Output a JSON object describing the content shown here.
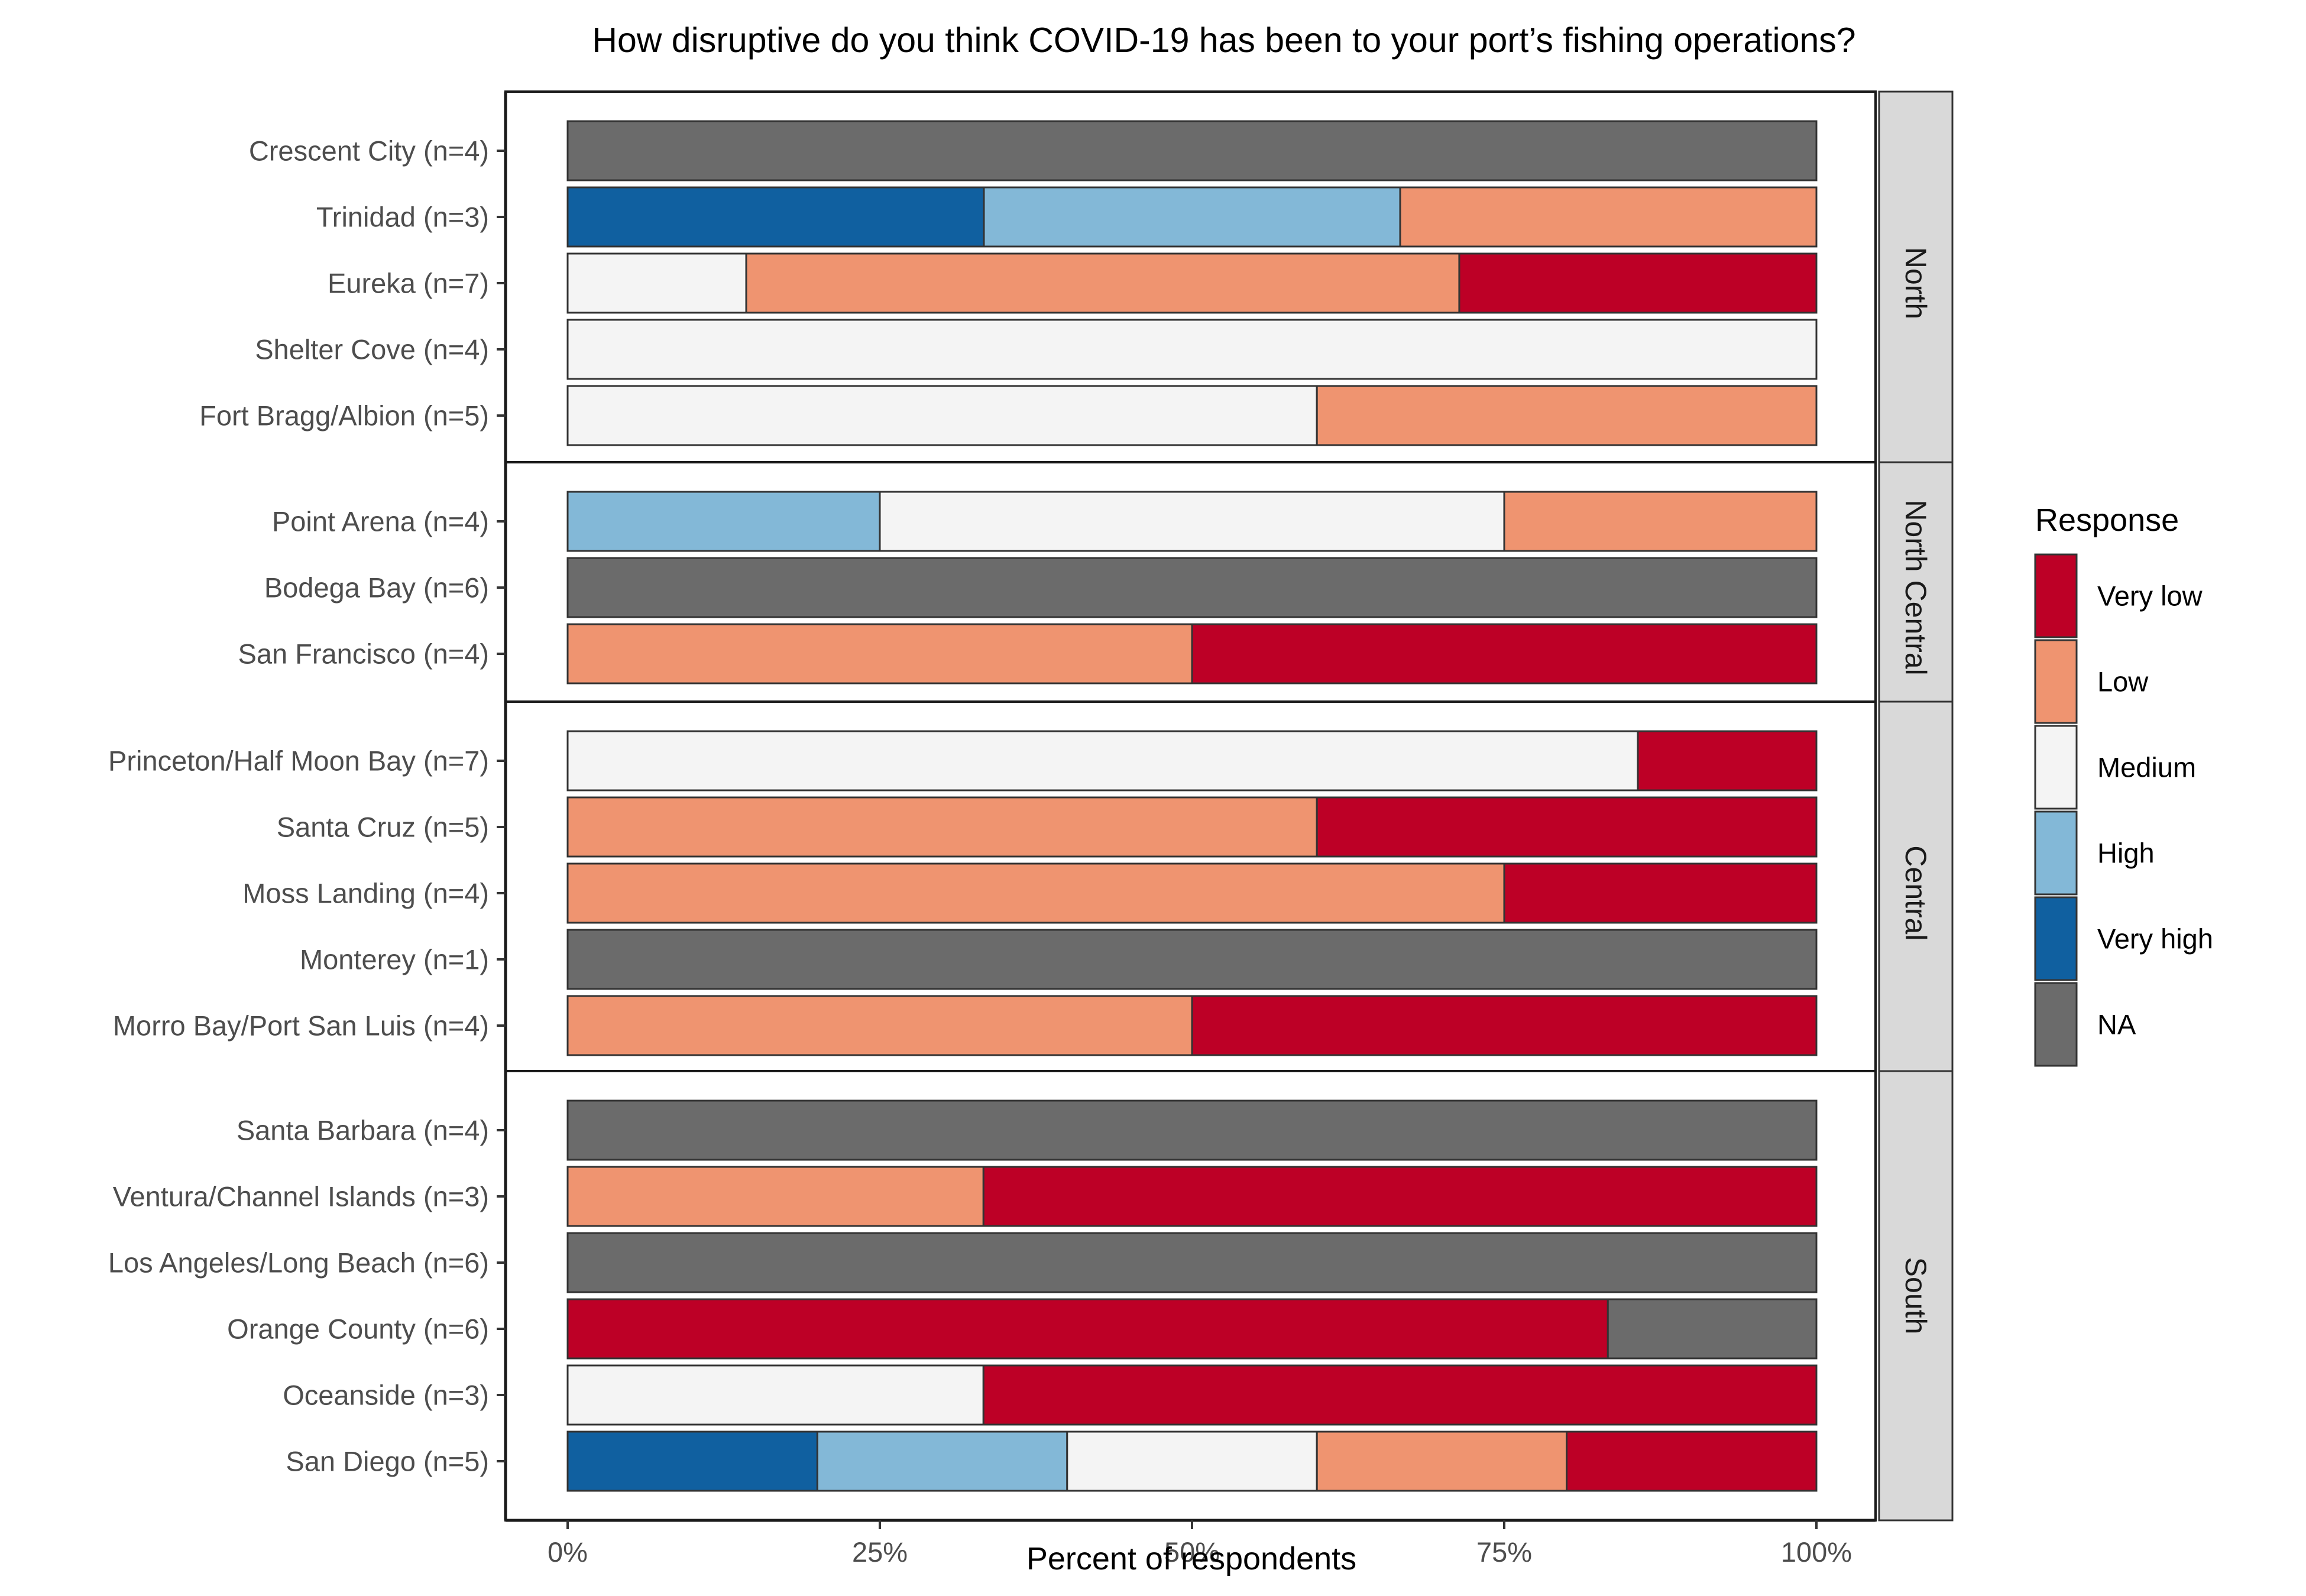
{
  "chart_data": {
    "type": "bar",
    "orientation": "horizontal",
    "stacked": true,
    "title": "How disruptive do you think COVID-19 has been to your port’s fishing operations?",
    "xlabel": "Percent of respondents",
    "ylabel": "",
    "xlim": [
      0,
      100
    ],
    "x_ticks": [
      0,
      25,
      50,
      75,
      100
    ],
    "x_tick_labels": [
      "0%",
      "25%",
      "50%",
      "75%",
      "100%"
    ],
    "grid": false,
    "legend": {
      "title": "Response",
      "position": "right",
      "entries": [
        "Very low",
        "Low",
        "Medium",
        "High",
        "Very high",
        "NA"
      ]
    },
    "colors": {
      "Very low": "#bd0026",
      "Low": "#ef9470",
      "Medium": "#f4f4f4",
      "High": "#83b8d7",
      "Very high": "#1060a0",
      "NA": "#6b6b6b"
    },
    "stack_order": [
      "Very high",
      "High",
      "Medium",
      "Low",
      "Very low",
      "NA"
    ],
    "facets": [
      {
        "name": "North",
        "ports": [
          {
            "label": "Crescent City (n=4)",
            "values": {
              "NA": 100
            }
          },
          {
            "label": "Trinidad (n=3)",
            "values": {
              "Very high": 33.3,
              "High": 33.3,
              "Low": 33.3
            }
          },
          {
            "label": "Eureka (n=7)",
            "values": {
              "Medium": 14.3,
              "Low": 57.1,
              "Very low": 28.6
            }
          },
          {
            "label": "Shelter Cove (n=4)",
            "values": {
              "Medium": 100
            }
          },
          {
            "label": "Fort Bragg/Albion (n=5)",
            "values": {
              "Medium": 60,
              "Low": 40
            }
          }
        ]
      },
      {
        "name": "North Central",
        "ports": [
          {
            "label": "Point Arena (n=4)",
            "values": {
              "High": 25,
              "Medium": 50,
              "Low": 25
            }
          },
          {
            "label": "Bodega Bay (n=6)",
            "values": {
              "NA": 100
            }
          },
          {
            "label": "San Francisco (n=4)",
            "values": {
              "Low": 50,
              "Very low": 50
            }
          }
        ]
      },
      {
        "name": "Central",
        "ports": [
          {
            "label": "Princeton/Half Moon Bay (n=7)",
            "values": {
              "Medium": 85.7,
              "Very low": 14.3
            }
          },
          {
            "label": "Santa Cruz (n=5)",
            "values": {
              "Low": 60,
              "Very low": 40
            }
          },
          {
            "label": "Moss Landing (n=4)",
            "values": {
              "Low": 75,
              "Very low": 25
            }
          },
          {
            "label": "Monterey (n=1)",
            "values": {
              "NA": 100
            }
          },
          {
            "label": "Morro Bay/Port San Luis (n=4)",
            "values": {
              "Low": 50,
              "Very low": 50
            }
          }
        ]
      },
      {
        "name": "South",
        "ports": [
          {
            "label": "Santa Barbara (n=4)",
            "values": {
              "NA": 100
            }
          },
          {
            "label": "Ventura/Channel Islands (n=3)",
            "values": {
              "Low": 33.3,
              "Very low": 66.7
            }
          },
          {
            "label": "Los Angeles/Long Beach (n=6)",
            "values": {
              "NA": 100
            }
          },
          {
            "label": "Orange County (n=6)",
            "values": {
              "NA": 16.7,
              "Very low": 83.3
            }
          },
          {
            "label": "Oceanside (n=3)",
            "values": {
              "Medium": 33.3,
              "Very low": 66.7
            }
          },
          {
            "label": "San Diego (n=5)",
            "values": {
              "Very high": 20,
              "High": 20,
              "Medium": 20,
              "Low": 20,
              "Very low": 20
            }
          }
        ]
      }
    ]
  }
}
